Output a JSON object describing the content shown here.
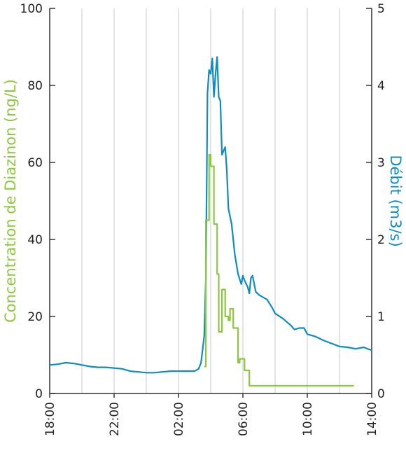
{
  "chart_data": {
    "type": "line",
    "xlabel": "",
    "x_ticks": [
      "18:00",
      "22:00",
      "02:00",
      "06:00",
      "10:00",
      "14:00"
    ],
    "x_range": [
      "18:00",
      "14:00 (+1 day)"
    ],
    "y_left": {
      "label": "Concentration de Diazinon (ng/L)",
      "ticks": [
        0,
        20,
        40,
        60,
        80,
        100
      ],
      "range": [
        0,
        100
      ],
      "color": "#8DC63F"
    },
    "y_right": {
      "label": "Débit (m3/s)",
      "ticks": [
        0,
        1,
        2,
        3,
        4,
        5
      ],
      "range": [
        0,
        5
      ],
      "color": "#0E8CC0"
    },
    "grid": "vertical",
    "series": [
      {
        "axis": "right",
        "color": "#0E8CC0",
        "style": "line",
        "points": [
          [
            "18:00",
            0.37
          ],
          [
            "18:30",
            0.38
          ],
          [
            "19:00",
            0.4
          ],
          [
            "19:30",
            0.39
          ],
          [
            "20:00",
            0.37
          ],
          [
            "20:30",
            0.35
          ],
          [
            "21:00",
            0.34
          ],
          [
            "21:30",
            0.34
          ],
          [
            "22:00",
            0.33
          ],
          [
            "22:30",
            0.32
          ],
          [
            "23:00",
            0.29
          ],
          [
            "23:30",
            0.28
          ],
          [
            "00:00",
            0.27
          ],
          [
            "00:30",
            0.27
          ],
          [
            "01:00",
            0.28
          ],
          [
            "01:30",
            0.29
          ],
          [
            "02:00",
            0.29
          ],
          [
            "02:30",
            0.29
          ],
          [
            "03:00",
            0.29
          ],
          [
            "03:15",
            0.32
          ],
          [
            "03:24",
            0.4
          ],
          [
            "03:36",
            0.75
          ],
          [
            "03:42",
            1.5
          ],
          [
            "03:48",
            3.9
          ],
          [
            "03:54",
            4.2
          ],
          [
            "04:00",
            4.15
          ],
          [
            "04:06",
            4.35
          ],
          [
            "04:12",
            3.85
          ],
          [
            "04:18",
            4.15
          ],
          [
            "04:24",
            4.37
          ],
          [
            "04:30",
            3.85
          ],
          [
            "04:36",
            3.8
          ],
          [
            "04:42",
            3.1
          ],
          [
            "04:48",
            3.15
          ],
          [
            "04:54",
            3.2
          ],
          [
            "05:00",
            2.9
          ],
          [
            "05:06",
            2.4
          ],
          [
            "05:18",
            2.2
          ],
          [
            "05:30",
            1.8
          ],
          [
            "05:42",
            1.55
          ],
          [
            "05:54",
            1.42
          ],
          [
            "06:00",
            1.53
          ],
          [
            "06:06",
            1.47
          ],
          [
            "06:18",
            1.38
          ],
          [
            "06:24",
            1.3
          ],
          [
            "06:30",
            1.5
          ],
          [
            "06:36",
            1.53
          ],
          [
            "06:48",
            1.32
          ],
          [
            "07:00",
            1.28
          ],
          [
            "07:30",
            1.22
          ],
          [
            "07:48",
            1.12
          ],
          [
            "08:00",
            1.04
          ],
          [
            "08:30",
            0.97
          ],
          [
            "09:00",
            0.88
          ],
          [
            "09:12",
            0.83
          ],
          [
            "09:30",
            0.85
          ],
          [
            "09:48",
            0.85
          ],
          [
            "10:00",
            0.77
          ],
          [
            "10:30",
            0.74
          ],
          [
            "11:00",
            0.69
          ],
          [
            "11:30",
            0.65
          ],
          [
            "12:00",
            0.61
          ],
          [
            "12:30",
            0.6
          ],
          [
            "13:00",
            0.58
          ],
          [
            "13:30",
            0.6
          ],
          [
            "14:00",
            0.56
          ]
        ]
      },
      {
        "axis": "left",
        "color": "#8DC63F",
        "style": "step",
        "points": [
          [
            "03:36",
            7
          ],
          [
            "03:42",
            45
          ],
          [
            "03:54",
            62
          ],
          [
            "04:00",
            59
          ],
          [
            "04:12",
            44
          ],
          [
            "04:24",
            31
          ],
          [
            "04:30",
            16
          ],
          [
            "04:42",
            27
          ],
          [
            "04:54",
            20
          ],
          [
            "05:06",
            19
          ],
          [
            "05:12",
            22
          ],
          [
            "05:24",
            17
          ],
          [
            "05:42",
            8
          ],
          [
            "05:48",
            9
          ],
          [
            "06:06",
            6
          ],
          [
            "06:24",
            2
          ],
          [
            "12:54",
            2
          ]
        ]
      }
    ]
  }
}
